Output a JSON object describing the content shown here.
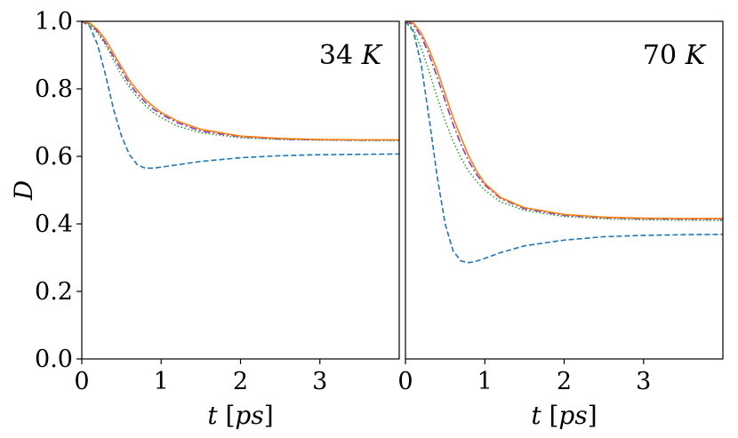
{
  "chart_data": [
    {
      "type": "line",
      "panel_label": "34 K",
      "xlabel": "t [ps]",
      "ylabel": "D",
      "xlim": [
        0,
        4
      ],
      "ylim": [
        0,
        1
      ],
      "xticks": [
        0,
        1,
        2,
        3
      ],
      "yticks": [
        0.0,
        0.2,
        0.4,
        0.6,
        0.8,
        1.0
      ],
      "grid": false,
      "series": [
        {
          "color": "#1f77b4",
          "style": "dashed",
          "x": [
            0,
            0.1,
            0.2,
            0.3,
            0.4,
            0.5,
            0.6,
            0.7,
            0.8,
            0.9,
            1.0,
            1.2,
            1.5,
            2.0,
            2.5,
            3.0,
            3.5,
            4.0
          ],
          "y": [
            1.0,
            0.985,
            0.93,
            0.84,
            0.74,
            0.66,
            0.605,
            0.575,
            0.565,
            0.565,
            0.568,
            0.575,
            0.585,
            0.596,
            0.602,
            0.605,
            0.606,
            0.607
          ]
        },
        {
          "color": "#2ca02c",
          "style": "dotted",
          "x": [
            0,
            0.1,
            0.2,
            0.3,
            0.4,
            0.5,
            0.6,
            0.7,
            0.8,
            0.9,
            1.0,
            1.2,
            1.5,
            2.0,
            2.5,
            3.0,
            3.5,
            4.0
          ],
          "y": [
            1.0,
            0.99,
            0.965,
            0.93,
            0.885,
            0.84,
            0.805,
            0.775,
            0.75,
            0.73,
            0.715,
            0.69,
            0.67,
            0.655,
            0.65,
            0.648,
            0.647,
            0.647
          ]
        },
        {
          "color": "#7f3fbf",
          "style": "dashdot",
          "x": [
            0,
            0.1,
            0.2,
            0.3,
            0.4,
            0.5,
            0.6,
            0.7,
            0.8,
            0.9,
            1.0,
            1.2,
            1.5,
            2.0,
            2.5,
            3.0,
            3.5,
            4.0
          ],
          "y": [
            1.0,
            0.993,
            0.97,
            0.935,
            0.895,
            0.855,
            0.815,
            0.785,
            0.76,
            0.74,
            0.725,
            0.7,
            0.675,
            0.658,
            0.651,
            0.649,
            0.648,
            0.648
          ]
        },
        {
          "color": "#ff7f0e",
          "style": "solid",
          "x": [
            0,
            0.1,
            0.2,
            0.3,
            0.4,
            0.5,
            0.6,
            0.7,
            0.8,
            0.9,
            1.0,
            1.2,
            1.5,
            2.0,
            2.5,
            3.0,
            3.5,
            4.0
          ],
          "y": [
            1.0,
            0.995,
            0.975,
            0.945,
            0.905,
            0.865,
            0.825,
            0.795,
            0.768,
            0.748,
            0.73,
            0.705,
            0.68,
            0.66,
            0.653,
            0.65,
            0.649,
            0.649
          ]
        }
      ]
    },
    {
      "type": "line",
      "panel_label": "70 K",
      "xlabel": "t [ps]",
      "ylabel": "",
      "xlim": [
        0,
        4
      ],
      "ylim": [
        0,
        1
      ],
      "xticks": [
        0,
        1,
        2,
        3
      ],
      "yticks": [],
      "grid": false,
      "series": [
        {
          "color": "#1f77b4",
          "style": "dashed",
          "x": [
            0,
            0.1,
            0.2,
            0.3,
            0.4,
            0.5,
            0.6,
            0.7,
            0.8,
            0.9,
            1.0,
            1.2,
            1.5,
            2.0,
            2.5,
            3.0,
            3.5,
            4.0
          ],
          "y": [
            1.0,
            0.97,
            0.87,
            0.71,
            0.54,
            0.4,
            0.32,
            0.29,
            0.285,
            0.29,
            0.298,
            0.315,
            0.335,
            0.352,
            0.362,
            0.366,
            0.368,
            0.369
          ]
        },
        {
          "color": "#2ca02c",
          "style": "dotted",
          "x": [
            0,
            0.1,
            0.2,
            0.3,
            0.4,
            0.5,
            0.6,
            0.7,
            0.8,
            0.9,
            1.0,
            1.2,
            1.5,
            2.0,
            2.5,
            3.0,
            3.5,
            4.0
          ],
          "y": [
            1.0,
            0.975,
            0.92,
            0.85,
            0.775,
            0.705,
            0.645,
            0.595,
            0.555,
            0.525,
            0.5,
            0.465,
            0.44,
            0.422,
            0.415,
            0.412,
            0.411,
            0.41
          ]
        },
        {
          "color": "#7f3fbf",
          "style": "dashdot",
          "x": [
            0,
            0.1,
            0.2,
            0.3,
            0.4,
            0.5,
            0.6,
            0.7,
            0.8,
            0.9,
            1.0,
            1.2,
            1.5,
            2.0,
            2.5,
            3.0,
            3.5,
            4.0
          ],
          "y": [
            1.0,
            0.99,
            0.955,
            0.9,
            0.835,
            0.765,
            0.695,
            0.635,
            0.585,
            0.545,
            0.515,
            0.475,
            0.445,
            0.425,
            0.418,
            0.415,
            0.414,
            0.414
          ]
        },
        {
          "color": "#ff7f0e",
          "style": "solid",
          "x": [
            0,
            0.1,
            0.2,
            0.3,
            0.4,
            0.5,
            0.6,
            0.7,
            0.8,
            0.9,
            1.0,
            1.2,
            1.5,
            2.0,
            2.5,
            3.0,
            3.5,
            4.0
          ],
          "y": [
            1.0,
            0.995,
            0.965,
            0.915,
            0.855,
            0.785,
            0.715,
            0.655,
            0.6,
            0.555,
            0.52,
            0.478,
            0.448,
            0.428,
            0.42,
            0.417,
            0.416,
            0.416
          ]
        }
      ]
    }
  ]
}
